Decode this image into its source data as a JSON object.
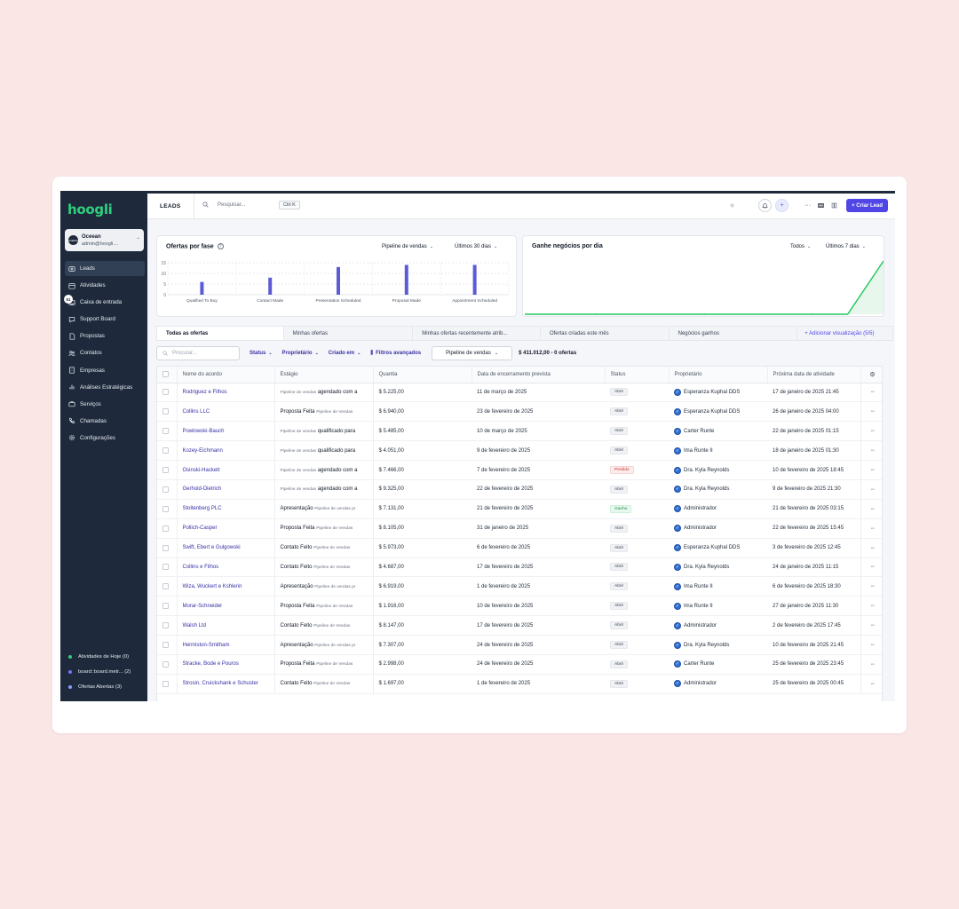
{
  "app": {
    "logo": "hoogli"
  },
  "org": {
    "name": "Oceean",
    "email": "admin@hoogli....",
    "logo_text": "OCEEAN"
  },
  "sidebar": {
    "items": [
      {
        "label": "Leads",
        "icon": "leads-icon",
        "active": true
      },
      {
        "label": "Atividades",
        "icon": "calendar-icon"
      },
      {
        "label": "Caixa de entrada",
        "icon": "inbox-icon",
        "badge": "51"
      },
      {
        "label": "Support Board",
        "icon": "chat-icon"
      },
      {
        "label": "Propostas",
        "icon": "document-icon"
      },
      {
        "label": "Contatos",
        "icon": "users-icon"
      },
      {
        "label": "Empresas",
        "icon": "building-icon"
      },
      {
        "label": "Análises Estratégicas",
        "icon": "chart-icon"
      },
      {
        "label": "Serviços",
        "icon": "briefcase-icon"
      },
      {
        "label": "Chamadas",
        "icon": "phone-icon"
      },
      {
        "label": "Configurações",
        "icon": "gear-icon"
      }
    ],
    "bottom": [
      {
        "label": "Atividades de Hoje",
        "count": "(0)",
        "color": "#2fcf7f"
      },
      {
        "label": "board::board.metr...",
        "count": "(2)",
        "color": "#6c7bff"
      },
      {
        "label": "Ofertas Abertas",
        "count": "(3)",
        "color": "#8b9cff"
      }
    ]
  },
  "topbar": {
    "title": "LEADS",
    "search_placeholder": "Pesquisar...",
    "shortcut": "Ctrl K",
    "create_label": "+ Criar Lead"
  },
  "charts": {
    "phase": {
      "title": "Ofertas por fase",
      "pipeline": "Pipeline de vendas",
      "period": "Últimos 30 dias"
    },
    "daily": {
      "title": "Ganhe negócios por dia",
      "filter": "Todos",
      "period": "Últimos 7 dias"
    }
  },
  "chart_data": [
    {
      "type": "bar",
      "title": "Ofertas por fase",
      "categories": [
        "Qualified To Buy",
        "Contact Made",
        "Presentation Scheduled",
        "Proposal Made",
        "Appointment Scheduled"
      ],
      "values": [
        6,
        8,
        13,
        14,
        14
      ],
      "yticks": [
        "15",
        "10",
        "5",
        "0"
      ],
      "ylim": [
        0,
        15
      ],
      "grid": true,
      "color": "#5b5bd6"
    },
    {
      "type": "area",
      "title": "Ganhe negócios por dia",
      "values": [
        0,
        0,
        0,
        0,
        0,
        0,
        0,
        0,
        0,
        0,
        1
      ],
      "color": "#22c55e"
    }
  ],
  "tabs": [
    "Todas as ofertas",
    "Minhas ofertas",
    "Minhas ofertas recentemente atrib...",
    "Ofertas criadas este mês",
    "Negócios ganhos",
    "+ Adicionar visualização (5/5)"
  ],
  "filters": {
    "search_placeholder": "Procurar...",
    "status": "Status",
    "owner": "Proprietário",
    "created": "Criado em",
    "advanced": "Filtros avançados",
    "pipeline": "Pipeline de vendas",
    "total": "$ 411.012,00 - 0 ofertas"
  },
  "table": {
    "columns": [
      "Nome do acordo",
      "Estágio",
      "Quantia",
      "Data de encerramento prevista",
      "Status",
      "Proprietário",
      "Próxima data de atividade"
    ],
    "rows": [
      {
        "name": "Rodriguez e Filhos",
        "stage": "agendado com a",
        "stage_sub": "Pipeline de vendas",
        "sub_first": true,
        "amount": "$ 5.225,00",
        "close": "11 de março de 2025",
        "status": "Abrir",
        "owner": "Esperanza Kuphal DDS",
        "next": "17 de janeiro de 2025 21:45"
      },
      {
        "name": "Collins LLC",
        "stage": "Proposta Feita",
        "stage_sub": "Pipeline de Vendas",
        "sub_first": false,
        "amount": "$ 6.940,00",
        "close": "23 de fevereiro de 2025",
        "status": "Abrir",
        "owner": "Esperanza Kuphal DDS",
        "next": "26 de janeiro de 2025 04:00"
      },
      {
        "name": "Powlowski-Bauch",
        "stage": "qualificado para",
        "stage_sub": "Pipeline de vendas",
        "sub_first": true,
        "amount": "$ 5.485,00",
        "close": "10 de março de 2025",
        "status": "Abrir",
        "owner": "Carter Runte",
        "next": "22 de janeiro de 2025 01:15"
      },
      {
        "name": "Kozey-Eichmann",
        "stage": "qualificado para",
        "stage_sub": "Pipeline de vendas",
        "sub_first": true,
        "amount": "$ 4.051,00",
        "close": "9 de fevereiro de 2025",
        "status": "Abrir",
        "owner": "Ima Runte II",
        "next": "18 de janeiro de 2025 01:30"
      },
      {
        "name": "Osinski-Hackett",
        "stage": "agendado com a",
        "stage_sub": "Pipeline de vendas",
        "sub_first": true,
        "amount": "$ 7.466,00",
        "close": "7 de fevereiro de 2025",
        "status": "Perdido",
        "owner": "Dra. Kyla Reynolds",
        "next": "10 de fevereiro de 2025 18:45"
      },
      {
        "name": "Gerhold-Dietrich",
        "stage": "agendado com a",
        "stage_sub": "Pipeline de vendas",
        "sub_first": true,
        "amount": "$ 9.325,00",
        "close": "22 de fevereiro de 2025",
        "status": "Abrir",
        "owner": "Dra. Kyla Reynolds",
        "next": "9 de fevereiro de 2025 21:30"
      },
      {
        "name": "Stoltenberg PLC",
        "stage": "Apresentação",
        "stage_sub": "Pipeline de vendas pr",
        "sub_first": false,
        "amount": "$ 7.131,00",
        "close": "21 de fevereiro de 2025",
        "status": "Ganho",
        "owner": "Administrador",
        "next": "21 de fevereiro de 2025 03:15"
      },
      {
        "name": "Pollich-Casper",
        "stage": "Proposta Feita",
        "stage_sub": "Pipeline de Vendas",
        "sub_first": false,
        "amount": "$ 8.105,00",
        "close": "31 de janeiro de 2025",
        "status": "Abrir",
        "owner": "Administrador",
        "next": "22 de fevereiro de 2025 15:45"
      },
      {
        "name": "Swift, Ebert e Gulgowski",
        "stage": "Contato Feito",
        "stage_sub": "Pipeline de Vendas",
        "sub_first": false,
        "amount": "$ 5.973,00",
        "close": "6 de fevereiro de 2025",
        "status": "Abrir",
        "owner": "Esperanza Kuphal DDS",
        "next": "3 de fevereiro de 2025 12:45"
      },
      {
        "name": "Collins e Filhos",
        "stage": "Contato Feito",
        "stage_sub": "Pipeline de Vendas",
        "sub_first": false,
        "amount": "$ 4.687,00",
        "close": "17 de fevereiro de 2025",
        "status": "Abrir",
        "owner": "Dra. Kyla Reynolds",
        "next": "24 de janeiro de 2025 11:15"
      },
      {
        "name": "Wiza, Wuckert e Kshlerin",
        "stage": "Apresentação",
        "stage_sub": "Pipeline de vendas pr",
        "sub_first": false,
        "amount": "$ 6.919,00",
        "close": "1 de fevereiro de 2025",
        "status": "Abrir",
        "owner": "Ima Runte II",
        "next": "6 de fevereiro de 2025 18:30"
      },
      {
        "name": "Morar-Schneider",
        "stage": "Proposta Feita",
        "stage_sub": "Pipeline de Vendas",
        "sub_first": false,
        "amount": "$ 1.916,00",
        "close": "10 de fevereiro de 2025",
        "status": "Abrir",
        "owner": "Ima Runte II",
        "next": "27 de janeiro de 2025 11:30"
      },
      {
        "name": "Walsh Ltd",
        "stage": "Contato Feito",
        "stage_sub": "Pipeline de Vendas",
        "sub_first": false,
        "amount": "$ 8.147,00",
        "close": "17 de fevereiro de 2025",
        "status": "Abrir",
        "owner": "Administrador",
        "next": "2 de fevereiro de 2025 17:45"
      },
      {
        "name": "Hermiston-Smitham",
        "stage": "Apresentação",
        "stage_sub": "Pipeline de vendas pr",
        "sub_first": false,
        "amount": "$ 7.307,00",
        "close": "24 de fevereiro de 2025",
        "status": "Abrir",
        "owner": "Dra. Kyla Reynolds",
        "next": "10 de fevereiro de 2025 21:45"
      },
      {
        "name": "Stracke, Bode e Pouros",
        "stage": "Proposta Feita",
        "stage_sub": "Pipeline de Vendas",
        "sub_first": false,
        "amount": "$ 2.998,00",
        "close": "24 de fevereiro de 2025",
        "status": "Abrir",
        "owner": "Carter Runte",
        "next": "25 de fevereiro de 2025 23:45"
      },
      {
        "name": "Strosin, Cruickshank e Schuster",
        "stage": "Contato Feito",
        "stage_sub": "Pipeline de Vendas",
        "sub_first": false,
        "amount": "$ 1.697,00",
        "close": "1 de fevereiro de 2025",
        "status": "Abrir",
        "owner": "Administrador",
        "next": "25 de fevereiro de 2025 00:45"
      }
    ]
  },
  "colors": {
    "accent": "#4f46e5",
    "sidebar": "#1e2a3b",
    "logo": "#2fcf7f",
    "background": "#fbe6e6"
  }
}
